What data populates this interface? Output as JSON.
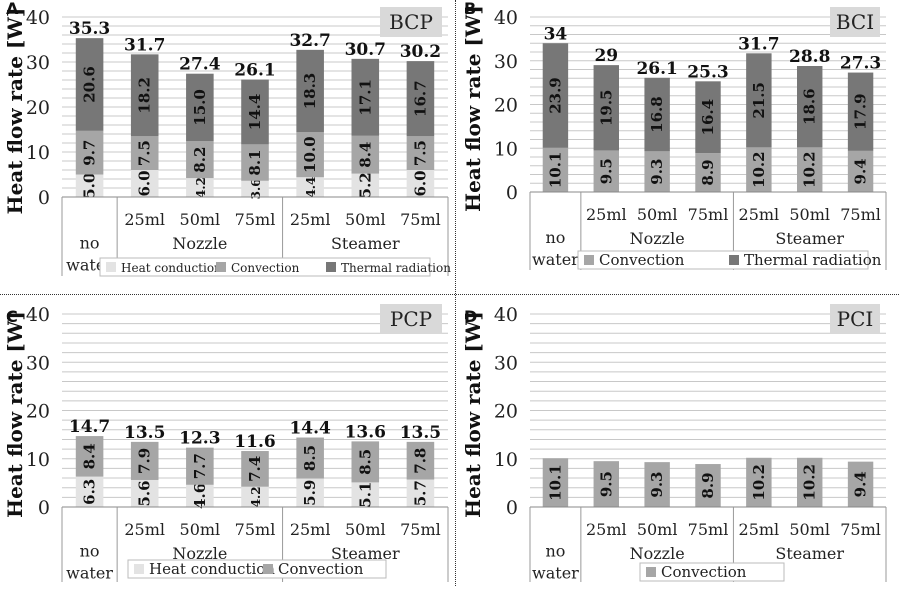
{
  "ylabel": "Heat flow rate [W]",
  "colors": {
    "heat_conduction": "#e3e3e3",
    "convection": "#a6a6a6",
    "thermal_radiation": "#777777",
    "grid": "#c8c8c8",
    "badge_bg": "#d9d9d9"
  },
  "chart_data": [
    {
      "type": "bar",
      "stacked": true,
      "panel": "A",
      "title": "BCP",
      "ylabel": "Heat flow rate [W]",
      "ylim": [
        0,
        40
      ],
      "yticks": [
        0,
        10,
        20,
        30,
        40
      ],
      "categories": [
        "no water",
        "25ml",
        "50ml",
        "75ml",
        "25ml",
        "50ml",
        "75ml"
      ],
      "groups": [
        {
          "label": "Nozzle",
          "start": 1,
          "end": 3
        },
        {
          "label": "Steamer",
          "start": 4,
          "end": 6
        }
      ],
      "series": [
        {
          "name": "Heat conduction",
          "color": "#e3e3e3",
          "values": [
            5.0,
            6.0,
            4.2,
            3.6,
            4.4,
            5.2,
            6.0
          ],
          "labels": [
            "5.0",
            "6.0",
            "4.2",
            "3.6",
            "4.4",
            "5.2",
            "6.0"
          ]
        },
        {
          "name": "Convection",
          "color": "#a6a6a6",
          "values": [
            9.7,
            7.5,
            8.2,
            8.1,
            10.0,
            8.4,
            7.5
          ],
          "labels": [
            "9.7",
            "7.5",
            "8.2",
            "8.1",
            "10.0",
            "8.4",
            "7.5"
          ]
        },
        {
          "name": "Thermal radiation",
          "color": "#777777",
          "values": [
            20.6,
            18.2,
            15.0,
            14.4,
            18.3,
            17.1,
            16.7
          ],
          "labels": [
            "20.6",
            "18.2",
            "15.0",
            "14.4",
            "18.3",
            "17.1",
            "16.7"
          ]
        }
      ],
      "totals": [
        "35.3",
        "31.7",
        "27.4",
        "26.1",
        "32.7",
        "30.7",
        "30.2"
      ],
      "legend": "bottom",
      "grid": true
    },
    {
      "type": "bar",
      "stacked": true,
      "panel": "B",
      "title": "BCI",
      "ylabel": "Heat flow rate [W]",
      "ylim": [
        0,
        40
      ],
      "yticks": [
        0,
        10,
        20,
        30,
        40
      ],
      "categories": [
        "no water",
        "25ml",
        "50ml",
        "75ml",
        "25ml",
        "50ml",
        "75ml"
      ],
      "groups": [
        {
          "label": "Nozzle",
          "start": 1,
          "end": 3
        },
        {
          "label": "Steamer",
          "start": 4,
          "end": 6
        }
      ],
      "series": [
        {
          "name": "Convection",
          "color": "#a6a6a6",
          "values": [
            10.1,
            9.5,
            9.3,
            8.9,
            10.2,
            10.2,
            9.4
          ],
          "labels": [
            "10.1",
            "9.5",
            "9.3",
            "8.9",
            "10.2",
            "10.2",
            "9.4"
          ]
        },
        {
          "name": "Thermal radiation",
          "color": "#777777",
          "values": [
            23.9,
            19.5,
            16.8,
            16.4,
            21.5,
            18.6,
            17.9
          ],
          "labels": [
            "23.9",
            "19.5",
            "16.8",
            "16.4",
            "21.5",
            "18.6",
            "17.9"
          ]
        }
      ],
      "totals": [
        "34",
        "29",
        "26.1",
        "25.3",
        "31.7",
        "28.8",
        "27.3"
      ],
      "legend": "bottom",
      "grid": true
    },
    {
      "type": "bar",
      "stacked": true,
      "panel": "C",
      "title": "PCP",
      "ylabel": "Heat flow rate [W]",
      "ylim": [
        0,
        40
      ],
      "yticks": [
        0,
        10,
        20,
        30,
        40
      ],
      "categories": [
        "no water",
        "25ml",
        "50ml",
        "75ml",
        "25ml",
        "50ml",
        "75ml"
      ],
      "groups": [
        {
          "label": "Nozzle",
          "start": 1,
          "end": 3
        },
        {
          "label": "Steamer",
          "start": 4,
          "end": 6
        }
      ],
      "series": [
        {
          "name": "Heat conduction",
          "color": "#e3e3e3",
          "values": [
            6.3,
            5.6,
            4.6,
            4.2,
            5.9,
            5.1,
            5.7
          ],
          "labels": [
            "6.3",
            "5.6",
            "4.6",
            "4.2",
            "5.9",
            "5.1",
            "5.7"
          ]
        },
        {
          "name": "Convection",
          "color": "#a6a6a6",
          "values": [
            8.4,
            7.9,
            7.7,
            7.4,
            8.5,
            8.5,
            7.8
          ],
          "labels": [
            "8.4",
            "7.9",
            "7.7",
            "7.4",
            "8.5",
            "8.5",
            "7.8"
          ]
        }
      ],
      "totals": [
        "14.7",
        "13.5",
        "12.3",
        "11.6",
        "14.4",
        "13.6",
        "13.5"
      ],
      "legend": "bottom",
      "grid": true
    },
    {
      "type": "bar",
      "stacked": true,
      "panel": "D",
      "title": "PCI",
      "ylabel": "Heat flow rate [W]",
      "ylim": [
        0,
        40
      ],
      "yticks": [
        0,
        10,
        20,
        30,
        40
      ],
      "categories": [
        "no water",
        "25ml",
        "50ml",
        "75ml",
        "25ml",
        "50ml",
        "75ml"
      ],
      "groups": [
        {
          "label": "Nozzle",
          "start": 1,
          "end": 3
        },
        {
          "label": "Steamer",
          "start": 4,
          "end": 6
        }
      ],
      "series": [
        {
          "name": "Convection",
          "color": "#a6a6a6",
          "values": [
            10.1,
            9.5,
            9.3,
            8.9,
            10.2,
            10.2,
            9.4
          ],
          "labels": [
            "10.1",
            "9.5",
            "9.3",
            "8.9",
            "10.2",
            "10.2",
            "9.4"
          ]
        }
      ],
      "totals": [],
      "legend": "bottom",
      "grid": true
    }
  ]
}
